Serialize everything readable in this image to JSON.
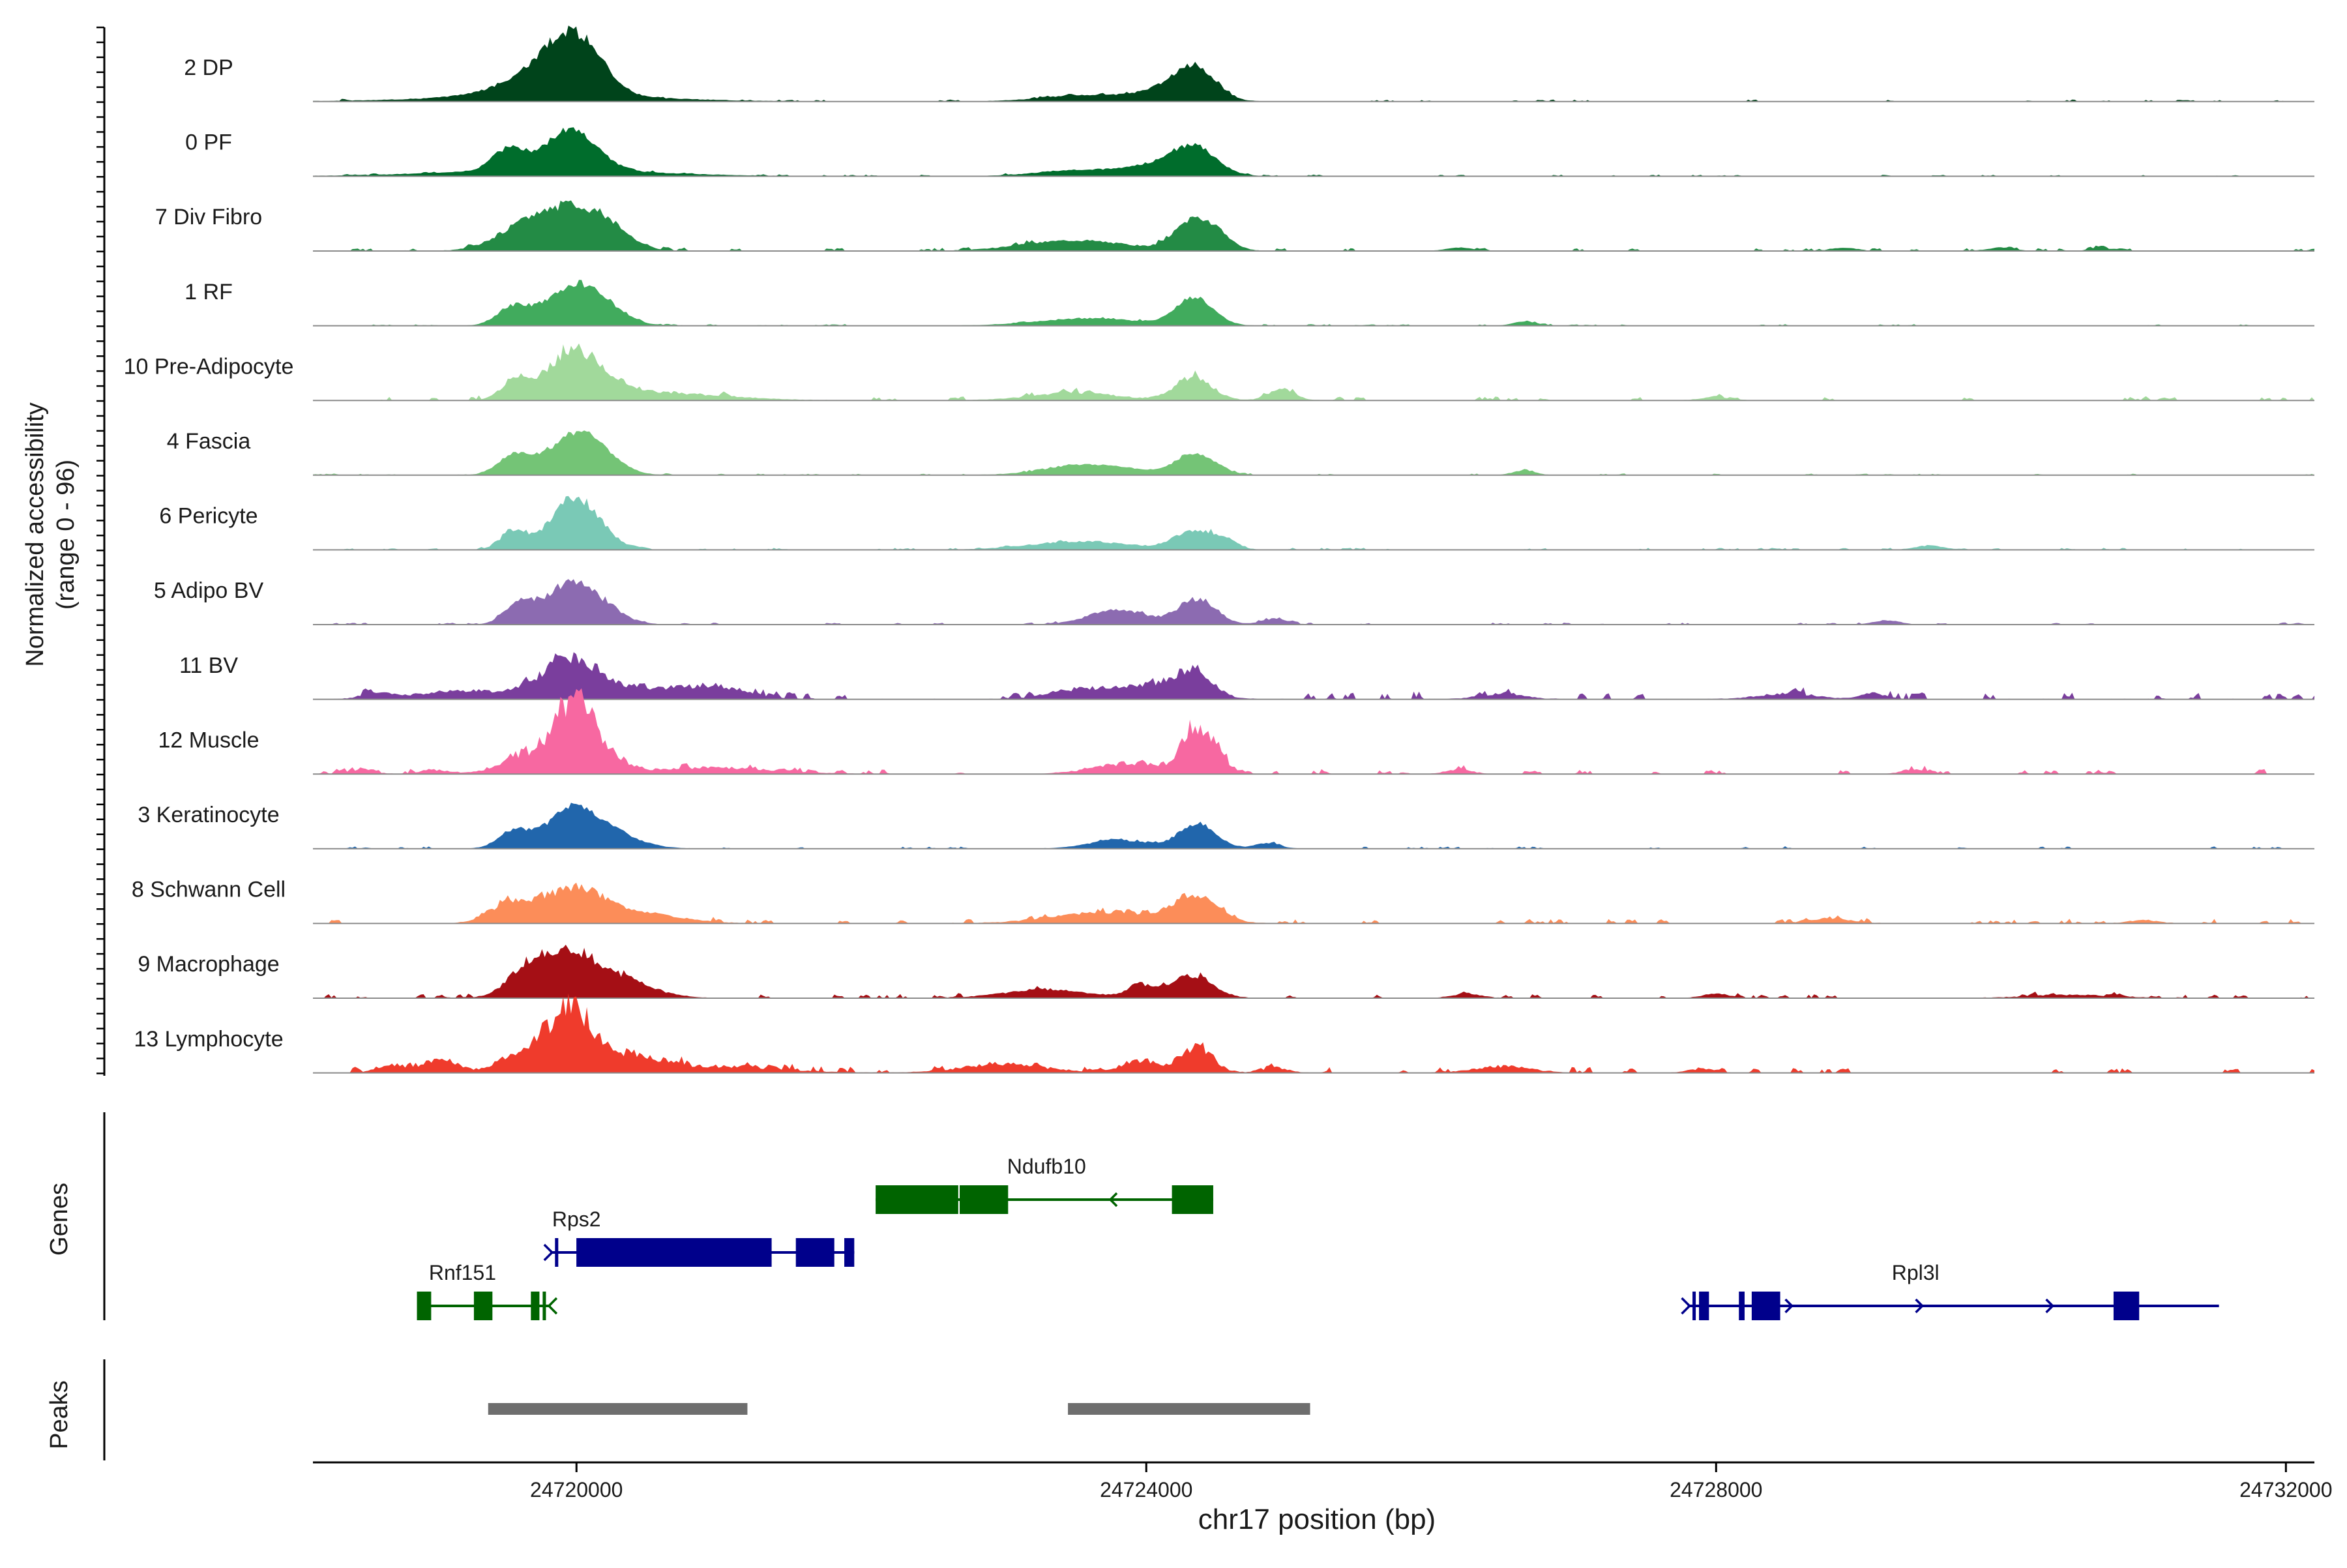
{
  "chart_data": {
    "type": "area",
    "title": "",
    "xlabel": "chr17 position (bp)",
    "ylabel": "Normalized accessibility",
    "ylabel_range": "(range 0 - 96)",
    "yrange": [
      0,
      96
    ],
    "xlim": [
      24718150,
      24732200
    ],
    "x_ticks": [
      24720000,
      24724000,
      24728000,
      24732000
    ],
    "x_tick_labels": [
      "24720000",
      "24724000",
      "24728000",
      "24732000"
    ],
    "genes_label": "Genes",
    "peaks_label": "Peaks",
    "tracks": [
      {
        "name": "2 DP",
        "color": "#00441b",
        "bg": 1.0,
        "noise": 0.35,
        "shift": 0.0,
        "peaks": [
          [
            24719600,
            240,
            10
          ],
          [
            24719880,
            180,
            38
          ],
          [
            24720080,
            160,
            30
          ],
          [
            24719800,
            700,
            6
          ],
          [
            24723580,
            300,
            6
          ],
          [
            24724350,
            140,
            28
          ],
          [
            24724150,
            200,
            10
          ]
        ]
      },
      {
        "name": "0 PF",
        "color": "#006d2c",
        "bg": 0.8,
        "noise": 0.35,
        "shift": 0.0,
        "peaks": [
          [
            24719520,
            110,
            20
          ],
          [
            24719960,
            180,
            38
          ],
          [
            24719800,
            700,
            6
          ],
          [
            24723550,
            300,
            6
          ],
          [
            24724350,
            150,
            24
          ],
          [
            24724100,
            200,
            10
          ]
        ]
      },
      {
        "name": "7 Div Fibro",
        "color": "#238b45",
        "bg": 1.2,
        "noise": 0.45,
        "shift": 0.0,
        "peaks": [
          [
            24719620,
            200,
            18
          ],
          [
            24719980,
            230,
            38
          ],
          [
            24720250,
            140,
            10
          ],
          [
            24723500,
            360,
            10
          ],
          [
            24724340,
            130,
            30
          ],
          [
            24724530,
            100,
            8
          ],
          [
            24726200,
            90,
            3
          ],
          [
            24728900,
            90,
            3
          ],
          [
            24730000,
            90,
            3
          ],
          [
            24730700,
            70,
            3
          ]
        ]
      },
      {
        "name": "1 RF",
        "color": "#41ab5d",
        "bg": 0.8,
        "noise": 0.35,
        "shift": 0.0,
        "peaks": [
          [
            24719550,
            110,
            16
          ],
          [
            24719980,
            200,
            36
          ],
          [
            24720200,
            150,
            8
          ],
          [
            24723600,
            350,
            7
          ],
          [
            24724340,
            130,
            26
          ],
          [
            24726660,
            80,
            4
          ]
        ]
      },
      {
        "name": "10 Pre-Adipocyte",
        "color": "#a1d99b",
        "bg": 1.2,
        "noise": 0.6,
        "shift": 0.0,
        "peaks": [
          [
            24719580,
            100,
            20
          ],
          [
            24719960,
            170,
            40
          ],
          [
            24720200,
            200,
            12
          ],
          [
            24720700,
            400,
            6
          ],
          [
            24723500,
            300,
            7
          ],
          [
            24724330,
            130,
            22
          ],
          [
            24724950,
            90,
            10
          ],
          [
            24728000,
            100,
            3
          ]
        ]
      },
      {
        "name": "4 Fascia",
        "color": "#74c476",
        "bg": 0.8,
        "noise": 0.35,
        "shift": 0.0,
        "peaks": [
          [
            24719560,
            110,
            18
          ],
          [
            24719980,
            190,
            34
          ],
          [
            24720150,
            160,
            10
          ],
          [
            24723620,
            300,
            10
          ],
          [
            24724350,
            140,
            20
          ],
          [
            24726650,
            80,
            4
          ]
        ]
      },
      {
        "name": "6 Pericyte",
        "color": "#7ac9b6",
        "bg": 0.8,
        "noise": 0.45,
        "shift": 0.0,
        "peaks": [
          [
            24719560,
            90,
            18
          ],
          [
            24719960,
            150,
            44
          ],
          [
            24720150,
            140,
            12
          ],
          [
            24723550,
            350,
            8
          ],
          [
            24724330,
            130,
            18
          ],
          [
            24724550,
            90,
            8
          ],
          [
            24729500,
            100,
            4
          ]
        ]
      },
      {
        "name": "5 Adipo BV",
        "color": "#8c6bb1",
        "bg": 0.8,
        "noise": 0.45,
        "shift": 0.0,
        "peaks": [
          [
            24719590,
            100,
            18
          ],
          [
            24719950,
            170,
            38
          ],
          [
            24720200,
            150,
            10
          ],
          [
            24723800,
            200,
            14
          ],
          [
            24724360,
            130,
            24
          ],
          [
            24724900,
            90,
            5
          ],
          [
            24729200,
            90,
            4
          ]
        ]
      },
      {
        "name": "11 BV",
        "color": "#7a3e9d",
        "bg": 1.5,
        "noise": 0.8,
        "shift": 0.0,
        "peaks": [
          [
            24718600,
            100,
            6
          ],
          [
            24719200,
            300,
            8
          ],
          [
            24719950,
            200,
            36
          ],
          [
            24720500,
            300,
            10
          ],
          [
            24721000,
            200,
            10
          ],
          [
            24723500,
            200,
            8
          ],
          [
            24724000,
            250,
            12
          ],
          [
            24724330,
            130,
            24
          ],
          [
            24726500,
            150,
            5
          ],
          [
            24728500,
            200,
            5
          ],
          [
            24729100,
            80,
            6
          ]
        ]
      },
      {
        "name": "12 Muscle",
        "color": "#f768a1",
        "bg": 0.8,
        "noise": 1.0,
        "shift": 0.0,
        "peaks": [
          [
            24718500,
            80,
            5
          ],
          [
            24719000,
            100,
            4
          ],
          [
            24719700,
            200,
            20
          ],
          [
            24719980,
            130,
            58
          ],
          [
            24720200,
            150,
            16
          ],
          [
            24721000,
            400,
            6
          ],
          [
            24723850,
            230,
            10
          ],
          [
            24724380,
            120,
            46
          ],
          [
            24726200,
            90,
            4
          ],
          [
            24729400,
            90,
            4
          ]
        ]
      },
      {
        "name": "3 Keratinocyte",
        "color": "#2166ac",
        "bg": 1.0,
        "noise": 0.4,
        "shift": 0.0,
        "peaks": [
          [
            24719560,
            110,
            16
          ],
          [
            24719980,
            180,
            38
          ],
          [
            24720300,
            180,
            10
          ],
          [
            24723800,
            200,
            8
          ],
          [
            24724360,
            130,
            24
          ],
          [
            24724850,
            90,
            5
          ]
        ]
      },
      {
        "name": "8 Schwann Cell",
        "color": "#fc8d59",
        "bg": 1.6,
        "noise": 0.5,
        "shift": 0.0,
        "peaks": [
          [
            24719550,
            150,
            18
          ],
          [
            24719980,
            200,
            30
          ],
          [
            24720400,
            300,
            10
          ],
          [
            24723700,
            350,
            10
          ],
          [
            24724350,
            150,
            24
          ],
          [
            24728800,
            150,
            4
          ],
          [
            24731000,
            100,
            3
          ]
        ]
      },
      {
        "name": "9 Macrophage",
        "color": "#a50f15",
        "bg": 1.2,
        "noise": 0.6,
        "shift": 0.0,
        "peaks": [
          [
            24719950,
            230,
            44
          ],
          [
            24719650,
            130,
            16
          ],
          [
            24720400,
            200,
            10
          ],
          [
            24723300,
            300,
            8
          ],
          [
            24723960,
            90,
            12
          ],
          [
            24724330,
            140,
            22
          ],
          [
            24726250,
            100,
            4
          ],
          [
            24728000,
            90,
            4
          ],
          [
            24730500,
            300,
            3
          ]
        ]
      },
      {
        "name": "13 Lymphocyte",
        "color": "#ef3b2c",
        "bg": 1.0,
        "noise": 1.0,
        "shift": 0.0,
        "peaks": [
          [
            24718700,
            100,
            8
          ],
          [
            24719050,
            110,
            14
          ],
          [
            24719580,
            150,
            14
          ],
          [
            24719950,
            170,
            60
          ],
          [
            24720400,
            200,
            14
          ],
          [
            24721000,
            400,
            6
          ],
          [
            24723000,
            300,
            8
          ],
          [
            24723950,
            120,
            12
          ],
          [
            24724350,
            110,
            26
          ],
          [
            24724900,
            90,
            5
          ],
          [
            24726500,
            200,
            6
          ],
          [
            24727900,
            90,
            4
          ]
        ]
      }
    ],
    "genes": [
      {
        "name": "Rps2",
        "strand": "+",
        "color": "#00008b",
        "row": 2,
        "start": 24720000,
        "end": 24721950,
        "label_x": 24720000,
        "exons": [
          [
            24720000,
            24720020
          ],
          [
            24720000,
            24721370
          ],
          [
            24721540,
            24721810
          ],
          [
            24721880,
            24721950
          ]
        ],
        "tss_x": 24719815,
        "line_start": 24719815
      },
      {
        "name": "Ndufb10",
        "strand": "-",
        "color": "#006400",
        "row": 1,
        "start": 24722100,
        "end": 24724470,
        "label_x": 24723300,
        "exons": [
          [
            24722100,
            24722680
          ],
          [
            24722690,
            24723030
          ],
          [
            24724180,
            24724470
          ]
        ]
      },
      {
        "name": "Rnf151",
        "strand": "-",
        "color": "#006400",
        "row": 3,
        "start": 24718880,
        "end": 24719820,
        "label_x": 24719200,
        "exons": [
          [
            24718880,
            24718980
          ],
          [
            24719280,
            24719410
          ],
          [
            24719680,
            24719740
          ]
        ],
        "tss_x": 24719820
      },
      {
        "name": "Rpl3l",
        "strand": "+",
        "color": "#00008b",
        "row": 3,
        "start": 24727800,
        "end": 24731530,
        "label_x": 24729400,
        "exons": [
          [
            24727880,
            24727950
          ],
          [
            24728160,
            24728200
          ],
          [
            24728250,
            24728450
          ],
          [
            24730790,
            24730970
          ]
        ],
        "tss_x": 24727800
      }
    ],
    "peaks": [
      {
        "start": 24719380,
        "end": 24721200
      },
      {
        "start": 24723450,
        "end": 24725150
      }
    ]
  }
}
